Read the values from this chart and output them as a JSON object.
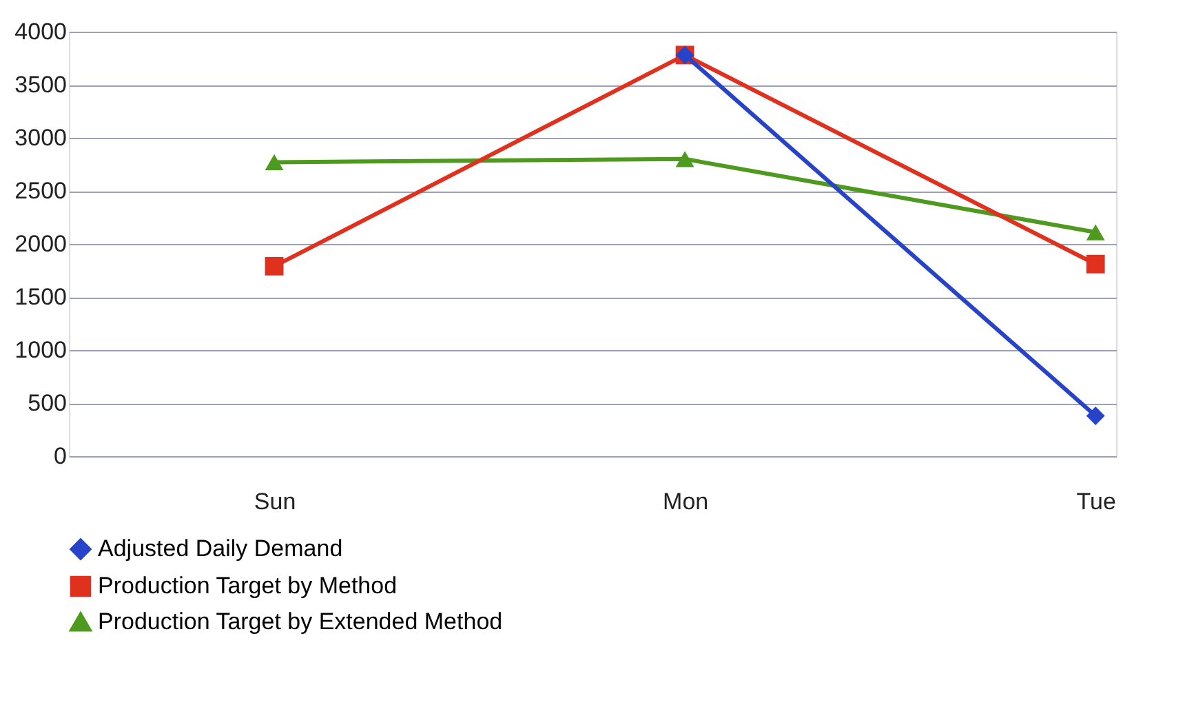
{
  "chart_data": {
    "type": "line",
    "categories": [
      "Sun",
      "Mon",
      "Tue"
    ],
    "series": [
      {
        "name": "Adjusted Daily Demand",
        "color": "#2743c9",
        "marker": "diamond",
        "values": [
          null,
          3780,
          380
        ]
      },
      {
        "name": "Production Target by Method",
        "color": "#e0301e",
        "marker": "square",
        "values": [
          1790,
          3780,
          1810
        ]
      },
      {
        "name": "Production Target by Extended Method",
        "color": "#4e9a1e",
        "marker": "triangle",
        "values": [
          2770,
          2800,
          2110
        ]
      }
    ],
    "ylim": [
      0,
      4000
    ],
    "yticks": [
      0,
      500,
      1000,
      1500,
      2000,
      2500,
      3000,
      3500,
      4000
    ],
    "grid": "y",
    "legend": "bottom",
    "line_style": "solid"
  }
}
